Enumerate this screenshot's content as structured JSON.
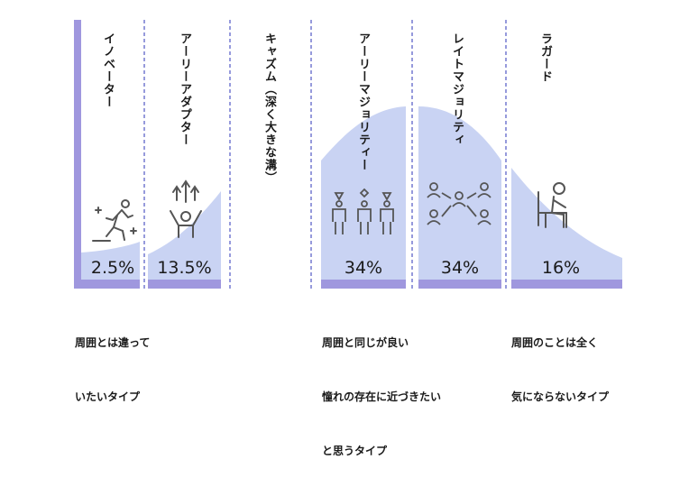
{
  "segments": [
    {
      "label": "イノベーター",
      "percent": "2.5%"
    },
    {
      "label": "アーリーアダプター",
      "percent": "13.5%"
    },
    {
      "label": "キャズム（深く大きな溝）",
      "percent": ""
    },
    {
      "label": "アーリーマジョリティー",
      "percent": "34%"
    },
    {
      "label": "レイトマジョリティ",
      "percent": "34%"
    },
    {
      "label": "ラガード",
      "percent": "16%"
    }
  ],
  "descriptions": {
    "innovator": [
      "周囲とは違って",
      "いたいタイプ"
    ],
    "early_majority": [
      "周囲と同じが良い",
      "憧れの存在に近づきたい",
      "と思うタイプ"
    ],
    "laggard": [
      "周囲のことは全く",
      "気にならないタイプ"
    ]
  },
  "colors": {
    "curve_fill": "#c9d3f3",
    "bar": "#9f97de",
    "divider": "#5d63c8",
    "icon": "#555555"
  },
  "icons": [
    "running-person-icon",
    "hands-up-person-icon",
    "three-people-icon",
    "network-people-icon",
    "seated-person-icon"
  ]
}
